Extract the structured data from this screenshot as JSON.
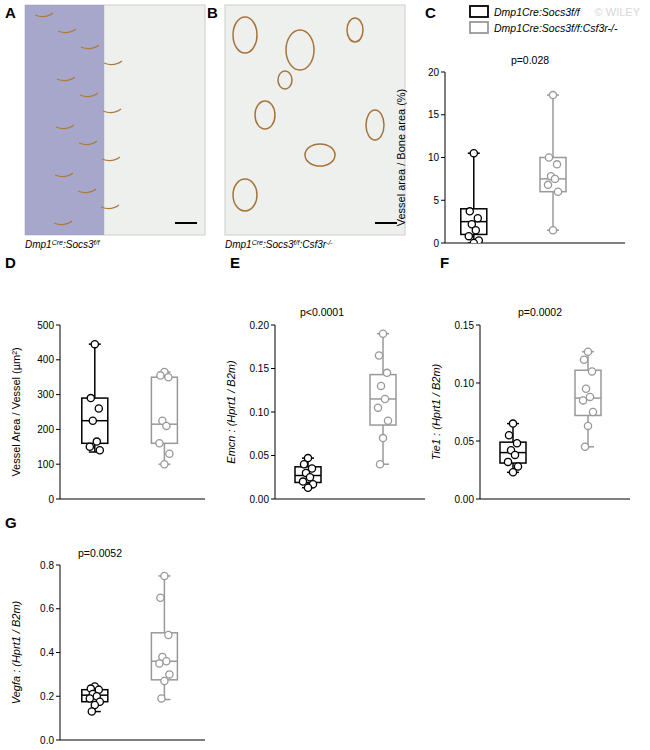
{
  "watermark": "© WILEY",
  "images": [
    {
      "title": "A",
      "caption": [
        {
          "text": "Dmp1"
        },
        {
          "text": "Cre",
          "sup": true
        },
        {
          "text": ":Socs3"
        },
        {
          "text": "f/f",
          "sup": true
        }
      ]
    },
    {
      "title": "B",
      "caption": [
        {
          "text": "Dmp1"
        },
        {
          "text": "Cre",
          "sup": true
        },
        {
          "text": ":Socs3"
        },
        {
          "text": "f/f",
          "sup": true
        },
        {
          "text": ":Csf3r"
        },
        {
          "text": "-/-",
          "sup": true
        }
      ]
    }
  ],
  "chart_data": [
    {
      "type": "box",
      "title": "C",
      "y_label": "Vessel area / Bone area (%)",
      "annotations": [
        {
          "text": "p=0.028"
        }
      ],
      "ylim": [
        0,
        20
      ],
      "yticks": [
        0,
        5,
        10,
        15,
        20
      ],
      "legend": "top",
      "series": [
        {
          "name": "Dmp1Cre:Socs3f/f",
          "color": "#000000",
          "box": {
            "min": 0,
            "q1": 1.0,
            "median": 2.5,
            "q3": 4.0,
            "max": 10.5
          },
          "points": [
            10.5,
            3.7,
            2.9,
            2.2,
            1.5,
            0.8,
            0.3,
            0
          ]
        },
        {
          "name": "Dmp1Cre:Socs3f/f:Csf3r-/-",
          "color": "#999999",
          "box": {
            "min": 1.5,
            "q1": 6.0,
            "median": 7.5,
            "q3": 10.0,
            "max": 17.3
          },
          "points": [
            17.3,
            10.0,
            9.2,
            7.8,
            7.5,
            6.8,
            6.0,
            1.5
          ]
        }
      ]
    },
    {
      "type": "box",
      "title": "D",
      "y_label": "Vessel Area / Vessel (µm²)",
      "ylim": [
        0,
        500
      ],
      "yticks": [
        0,
        100,
        200,
        300,
        400,
        500
      ],
      "series": [
        {
          "color": "#000000",
          "box": {
            "min": 135,
            "q1": 160,
            "median": 225,
            "q3": 290,
            "max": 445
          },
          "points": [
            445,
            290,
            260,
            225,
            165,
            150,
            140
          ]
        },
        {
          "color": "#999999",
          "box": {
            "min": 100,
            "q1": 160,
            "median": 215,
            "q3": 350,
            "max": 365
          },
          "points": [
            365,
            355,
            350,
            225,
            210,
            160,
            130,
            100
          ]
        }
      ]
    },
    {
      "type": "box",
      "title": "E",
      "y_label": "Emcn : (Hprt1 / B2m)",
      "annotations": [
        {
          "text": "p<0.0001"
        }
      ],
      "ylim": [
        0,
        0.2
      ],
      "yticks": [
        {
          "value": 0,
          "label": "0.00"
        },
        0.05,
        {
          "value": 0.1,
          "label": "0.10"
        },
        0.15,
        {
          "value": 0.2,
          "label": "0.20"
        }
      ],
      "series": [
        {
          "color": "#000000",
          "box": {
            "min": 0.013,
            "q1": 0.019,
            "median": 0.027,
            "q3": 0.037,
            "max": 0.047
          },
          "points": [
            0.047,
            0.04,
            0.035,
            0.03,
            0.025,
            0.02,
            0.017,
            0.013
          ]
        },
        {
          "color": "#999999",
          "box": {
            "min": 0.04,
            "q1": 0.085,
            "median": 0.115,
            "q3": 0.143,
            "max": 0.19
          },
          "points": [
            0.19,
            0.165,
            0.145,
            0.13,
            0.115,
            0.105,
            0.09,
            0.07,
            0.04
          ]
        }
      ]
    },
    {
      "type": "box",
      "title": "F",
      "y_label": "Tie1 : (Hprt1 / B2m)",
      "annotations": [
        {
          "text": "p=0.0002"
        }
      ],
      "ylim": [
        0,
        0.15
      ],
      "yticks": [
        {
          "value": 0,
          "label": "0.00"
        },
        0.05,
        {
          "value": 0.1,
          "label": "0.10"
        },
        0.15
      ],
      "series": [
        {
          "color": "#000000",
          "box": {
            "min": 0.023,
            "q1": 0.031,
            "median": 0.04,
            "q3": 0.049,
            "max": 0.065
          },
          "points": [
            0.065,
            0.055,
            0.048,
            0.042,
            0.038,
            0.032,
            0.028,
            0.023
          ]
        },
        {
          "color": "#999999",
          "box": {
            "min": 0.045,
            "q1": 0.072,
            "median": 0.087,
            "q3": 0.111,
            "max": 0.127
          },
          "points": [
            0.127,
            0.12,
            0.11,
            0.095,
            0.088,
            0.085,
            0.075,
            0.063,
            0.045
          ]
        }
      ]
    },
    {
      "type": "box",
      "title": "G",
      "y_label": "Vegfa : (Hprt1 / B2m)",
      "annotations": [
        {
          "text": "p=0.0052"
        }
      ],
      "ylim": [
        0,
        0.8
      ],
      "yticks": [
        {
          "value": 0,
          "label": "0.0"
        },
        0.2,
        0.4,
        0.6,
        0.8
      ],
      "series": [
        {
          "color": "#000000",
          "box": {
            "min": 0.13,
            "q1": 0.175,
            "median": 0.205,
            "q3": 0.23,
            "max": 0.245
          },
          "points": [
            0.245,
            0.235,
            0.23,
            0.21,
            0.2,
            0.19,
            0.175,
            0.16,
            0.13
          ]
        },
        {
          "color": "#999999",
          "box": {
            "min": 0.185,
            "q1": 0.275,
            "median": 0.36,
            "q3": 0.49,
            "max": 0.75
          },
          "points": [
            0.75,
            0.65,
            0.48,
            0.38,
            0.36,
            0.35,
            0.3,
            0.27,
            0.19
          ]
        }
      ]
    }
  ]
}
